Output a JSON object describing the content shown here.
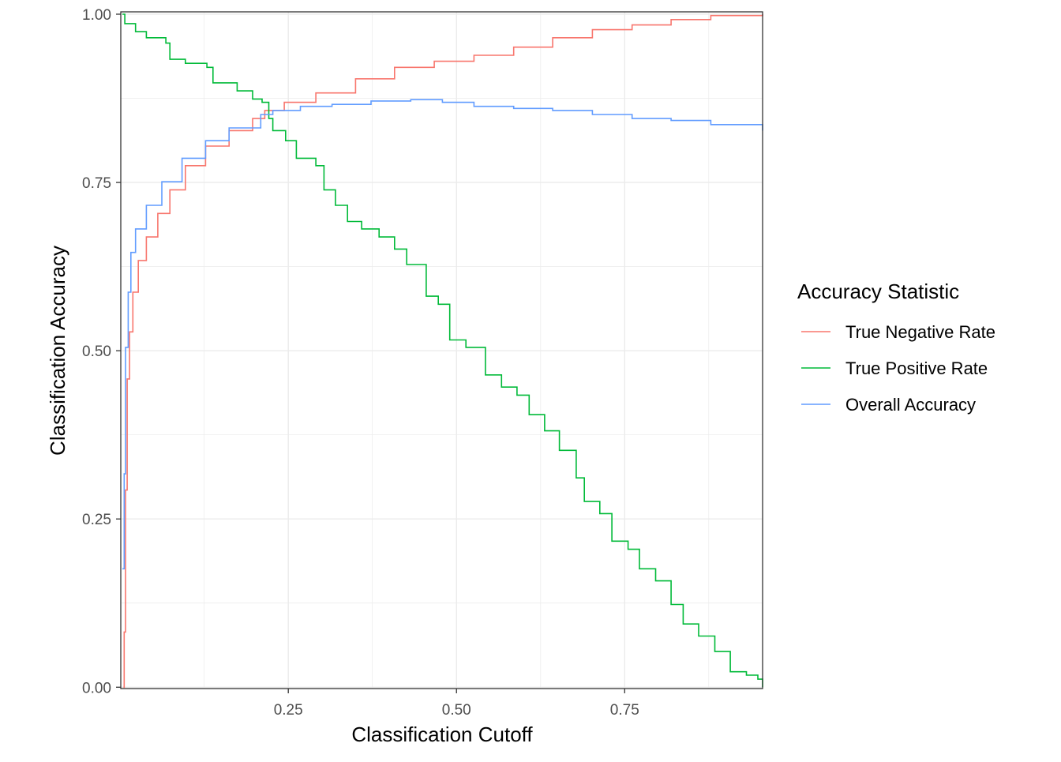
{
  "chart_data": {
    "type": "line",
    "title": "",
    "xlabel": "Classification Cutoff",
    "ylabel": "Classification Accuracy",
    "xlim": [
      0.001,
      0.955
    ],
    "ylim": [
      -0.002,
      1.0035
    ],
    "x_ticks": [
      0.25,
      0.5,
      0.75
    ],
    "x_tick_labels": [
      "0.25",
      "0.50",
      "0.75"
    ],
    "y_ticks": [
      0,
      0.25,
      0.5,
      0.75,
      1
    ],
    "y_tick_labels": [
      "0.00",
      "0.25",
      "0.50",
      "0.75",
      "1.00"
    ],
    "grid": true,
    "legend": {
      "title": "Accuracy Statistic",
      "position": "right"
    },
    "series": [
      {
        "name": "True Negative Rate",
        "color": "#F8766D",
        "x": [
          0.005,
          0.006,
          0.008,
          0.0105,
          0.014,
          0.019,
          0.027,
          0.039,
          0.056,
          0.074,
          0.097,
          0.127,
          0.162,
          0.197,
          0.215,
          0.244,
          0.291,
          0.35,
          0.408,
          0.467,
          0.526,
          0.585,
          0.643,
          0.702,
          0.761,
          0.819,
          0.878,
          0.955
        ],
        "y": [
          0,
          0.082,
          0.293,
          0.458,
          0.528,
          0.587,
          0.634,
          0.669,
          0.704,
          0.739,
          0.775,
          0.804,
          0.827,
          0.845,
          0.857,
          0.869,
          0.883,
          0.904,
          0.921,
          0.93,
          0.939,
          0.951,
          0.965,
          0.977,
          0.984,
          0.992,
          0.998,
          1.0
        ]
      },
      {
        "name": "True Positive Rate",
        "color": "#00BA38",
        "x": [
          0.0035,
          0.007,
          0.023,
          0.039,
          0.068,
          0.074,
          0.097,
          0.129,
          0.138,
          0.174,
          0.197,
          0.211,
          0.221,
          0.227,
          0.246,
          0.262,
          0.291,
          0.303,
          0.32,
          0.338,
          0.359,
          0.385,
          0.408,
          0.426,
          0.455,
          0.473,
          0.49,
          0.514,
          0.543,
          0.567,
          0.59,
          0.608,
          0.631,
          0.653,
          0.678,
          0.69,
          0.713,
          0.731,
          0.755,
          0.772,
          0.796,
          0.819,
          0.837,
          0.86,
          0.884,
          0.907,
          0.931,
          0.948,
          0.955
        ],
        "y": [
          1.0,
          0.986,
          0.974,
          0.965,
          0.957,
          0.933,
          0.927,
          0.921,
          0.898,
          0.886,
          0.874,
          0.869,
          0.845,
          0.827,
          0.812,
          0.786,
          0.775,
          0.739,
          0.716,
          0.692,
          0.681,
          0.669,
          0.651,
          0.628,
          0.581,
          0.569,
          0.516,
          0.505,
          0.464,
          0.446,
          0.434,
          0.405,
          0.381,
          0.352,
          0.311,
          0.276,
          0.258,
          0.217,
          0.205,
          0.176,
          0.158,
          0.123,
          0.094,
          0.076,
          0.053,
          0.023,
          0.018,
          0.012,
          0.0
        ]
      },
      {
        "name": "Overall Accuracy",
        "color": "#619CFF",
        "x": [
          0.0035,
          0.006,
          0.008,
          0.012,
          0.016,
          0.023,
          0.039,
          0.062,
          0.092,
          0.127,
          0.162,
          0.209,
          0.227,
          0.268,
          0.315,
          0.373,
          0.432,
          0.479,
          0.526,
          0.585,
          0.643,
          0.702,
          0.761,
          0.819,
          0.878,
          0.955
        ],
        "y": [
          0.176,
          0.317,
          0.505,
          0.587,
          0.646,
          0.681,
          0.716,
          0.751,
          0.786,
          0.812,
          0.831,
          0.851,
          0.857,
          0.863,
          0.866,
          0.871,
          0.873,
          0.869,
          0.863,
          0.86,
          0.857,
          0.851,
          0.845,
          0.842,
          0.836,
          0.827
        ]
      }
    ]
  }
}
